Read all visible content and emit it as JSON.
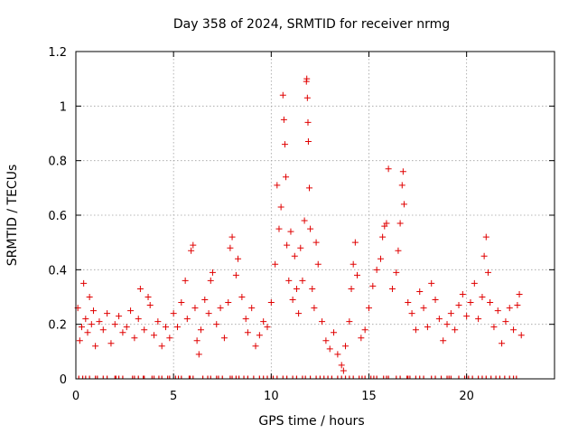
{
  "chart_data": {
    "type": "scatter",
    "title": "Day 358 of 2024, SRMTID for receiver nrmg",
    "xlabel": "GPS time / hours",
    "ylabel": "SRMTID / TECUs",
    "xlim": [
      0,
      24.5
    ],
    "ylim": [
      0,
      1.2
    ],
    "xticks": [
      0,
      5,
      10,
      15,
      20
    ],
    "yticks": [
      0,
      0.2,
      0.4,
      0.6,
      0.8,
      1,
      1.2
    ],
    "xtick_labels": [
      "0",
      "5",
      "10",
      "15",
      "20"
    ],
    "ytick_labels": [
      "0",
      "0.2",
      "0.4",
      "0.6",
      "0.8",
      "1",
      "1.2"
    ],
    "grid": true,
    "marker": "plus",
    "color": "#e00000",
    "series": [
      {
        "name": "SRMTID",
        "points": [
          [
            0.1,
            0.26
          ],
          [
            0.2,
            0.14
          ],
          [
            0.3,
            0.19
          ],
          [
            0.4,
            0.35
          ],
          [
            0.5,
            0.22
          ],
          [
            0.6,
            0.17
          ],
          [
            0.7,
            0.3
          ],
          [
            0.8,
            0.2
          ],
          [
            0.9,
            0.25
          ],
          [
            1.0,
            0.12
          ],
          [
            1.2,
            0.21
          ],
          [
            1.4,
            0.18
          ],
          [
            1.6,
            0.24
          ],
          [
            1.8,
            0.13
          ],
          [
            2.0,
            0.2
          ],
          [
            2.2,
            0.23
          ],
          [
            2.4,
            0.17
          ],
          [
            2.6,
            0.19
          ],
          [
            2.8,
            0.25
          ],
          [
            3.0,
            0.15
          ],
          [
            3.2,
            0.22
          ],
          [
            3.3,
            0.33
          ],
          [
            3.5,
            0.18
          ],
          [
            3.7,
            0.3
          ],
          [
            3.8,
            0.27
          ],
          [
            4.0,
            0.16
          ],
          [
            4.2,
            0.21
          ],
          [
            4.4,
            0.12
          ],
          [
            4.6,
            0.19
          ],
          [
            4.8,
            0.15
          ],
          [
            5.0,
            0.24
          ],
          [
            5.2,
            0.19
          ],
          [
            5.4,
            0.28
          ],
          [
            5.6,
            0.36
          ],
          [
            5.7,
            0.22
          ],
          [
            5.9,
            0.47
          ],
          [
            6.0,
            0.49
          ],
          [
            6.1,
            0.26
          ],
          [
            6.2,
            0.14
          ],
          [
            6.3,
            0.09
          ],
          [
            6.4,
            0.18
          ],
          [
            6.6,
            0.29
          ],
          [
            6.8,
            0.24
          ],
          [
            6.9,
            0.36
          ],
          [
            7.0,
            0.39
          ],
          [
            7.2,
            0.2
          ],
          [
            7.4,
            0.26
          ],
          [
            7.6,
            0.15
          ],
          [
            7.8,
            0.28
          ],
          [
            7.9,
            0.48
          ],
          [
            8.0,
            0.52
          ],
          [
            8.2,
            0.38
          ],
          [
            8.3,
            0.44
          ],
          [
            8.5,
            0.3
          ],
          [
            8.7,
            0.22
          ],
          [
            8.8,
            0.17
          ],
          [
            9.0,
            0.26
          ],
          [
            9.2,
            0.12
          ],
          [
            9.4,
            0.16
          ],
          [
            9.6,
            0.21
          ],
          [
            9.8,
            0.19
          ],
          [
            10.0,
            0.28
          ],
          [
            10.2,
            0.42
          ],
          [
            10.3,
            0.71
          ],
          [
            10.4,
            0.55
          ],
          [
            10.5,
            0.63
          ],
          [
            10.6,
            1.04
          ],
          [
            10.65,
            0.95
          ],
          [
            10.7,
            0.86
          ],
          [
            10.75,
            0.74
          ],
          [
            10.8,
            0.49
          ],
          [
            10.9,
            0.36
          ],
          [
            11.0,
            0.54
          ],
          [
            11.1,
            0.29
          ],
          [
            11.2,
            0.45
          ],
          [
            11.3,
            0.33
          ],
          [
            11.4,
            0.24
          ],
          [
            11.5,
            0.48
          ],
          [
            11.6,
            0.36
          ],
          [
            11.7,
            0.58
          ],
          [
            11.8,
            1.09
          ],
          [
            11.82,
            1.1
          ],
          [
            11.85,
            1.03
          ],
          [
            11.88,
            0.94
          ],
          [
            11.9,
            0.87
          ],
          [
            11.95,
            0.7
          ],
          [
            12.0,
            0.55
          ],
          [
            12.1,
            0.33
          ],
          [
            12.2,
            0.26
          ],
          [
            12.3,
            0.5
          ],
          [
            12.4,
            0.42
          ],
          [
            12.6,
            0.21
          ],
          [
            12.8,
            0.14
          ],
          [
            13.0,
            0.11
          ],
          [
            13.2,
            0.17
          ],
          [
            13.4,
            0.09
          ],
          [
            13.6,
            0.05
          ],
          [
            13.7,
            0.03
          ],
          [
            13.8,
            0.12
          ],
          [
            14.0,
            0.21
          ],
          [
            14.1,
            0.33
          ],
          [
            14.2,
            0.42
          ],
          [
            14.3,
            0.5
          ],
          [
            14.4,
            0.38
          ],
          [
            14.6,
            0.15
          ],
          [
            14.8,
            0.18
          ],
          [
            15.0,
            0.26
          ],
          [
            15.2,
            0.34
          ],
          [
            15.4,
            0.4
          ],
          [
            15.6,
            0.44
          ],
          [
            15.7,
            0.52
          ],
          [
            15.8,
            0.56
          ],
          [
            15.9,
            0.57
          ],
          [
            16.0,
            0.77
          ],
          [
            16.2,
            0.33
          ],
          [
            16.4,
            0.39
          ],
          [
            16.5,
            0.47
          ],
          [
            16.6,
            0.57
          ],
          [
            16.7,
            0.71
          ],
          [
            16.75,
            0.76
          ],
          [
            16.8,
            0.64
          ],
          [
            17.0,
            0.28
          ],
          [
            17.2,
            0.24
          ],
          [
            17.4,
            0.18
          ],
          [
            17.6,
            0.32
          ],
          [
            17.8,
            0.26
          ],
          [
            18.0,
            0.19
          ],
          [
            18.2,
            0.35
          ],
          [
            18.4,
            0.29
          ],
          [
            18.6,
            0.22
          ],
          [
            18.8,
            0.14
          ],
          [
            19.0,
            0.2
          ],
          [
            19.2,
            0.24
          ],
          [
            19.4,
            0.18
          ],
          [
            19.6,
            0.27
          ],
          [
            19.8,
            0.31
          ],
          [
            20.0,
            0.23
          ],
          [
            20.2,
            0.28
          ],
          [
            20.4,
            0.35
          ],
          [
            20.6,
            0.22
          ],
          [
            20.8,
            0.3
          ],
          [
            20.9,
            0.45
          ],
          [
            21.0,
            0.52
          ],
          [
            21.1,
            0.39
          ],
          [
            21.2,
            0.28
          ],
          [
            21.4,
            0.19
          ],
          [
            21.6,
            0.25
          ],
          [
            21.8,
            0.13
          ],
          [
            22.0,
            0.21
          ],
          [
            22.2,
            0.26
          ],
          [
            22.4,
            0.18
          ],
          [
            22.6,
            0.27
          ],
          [
            22.7,
            0.31
          ],
          [
            22.8,
            0.16
          ]
        ]
      }
    ],
    "zero_marks": [
      0.15,
      0.35,
      0.5,
      0.7,
      1.0,
      1.1,
      1.4,
      1.6,
      2.0,
      2.05,
      2.2,
      2.4,
      2.9,
      3.0,
      3.2,
      3.45,
      3.5,
      3.9,
      4.0,
      4.25,
      4.4,
      4.7,
      4.8,
      5.1,
      5.25,
      5.4,
      5.8,
      5.85,
      6.0,
      6.5,
      6.75,
      6.9,
      7.2,
      7.3,
      7.5,
      7.9,
      8.0,
      8.2,
      8.35,
      8.6,
      8.8,
      9.1,
      9.4,
      9.6,
      9.8,
      10.0,
      10.1,
      10.3,
      10.6,
      10.8,
      11.1,
      11.3,
      11.6,
      11.75,
      12.0,
      12.3,
      12.5,
      12.7,
      12.9,
      13.1,
      13.4,
      13.6,
      13.8,
      14.0,
      14.2,
      14.5,
      14.65,
      14.8,
      15.1,
      15.25,
      15.4,
      15.75,
      15.9,
      16.0,
      16.4,
      16.6,
      16.95,
      17.0,
      17.1,
      17.4,
      17.6,
      17.8,
      18.2,
      18.4,
      18.7,
      19.0,
      19.1,
      19.2,
      19.6,
      19.9,
      20.0,
      20.1,
      20.3,
      20.6,
      20.8,
      21.0,
      21.25,
      21.5,
      21.7,
      21.95,
      22.2,
      22.4,
      22.55
    ]
  }
}
